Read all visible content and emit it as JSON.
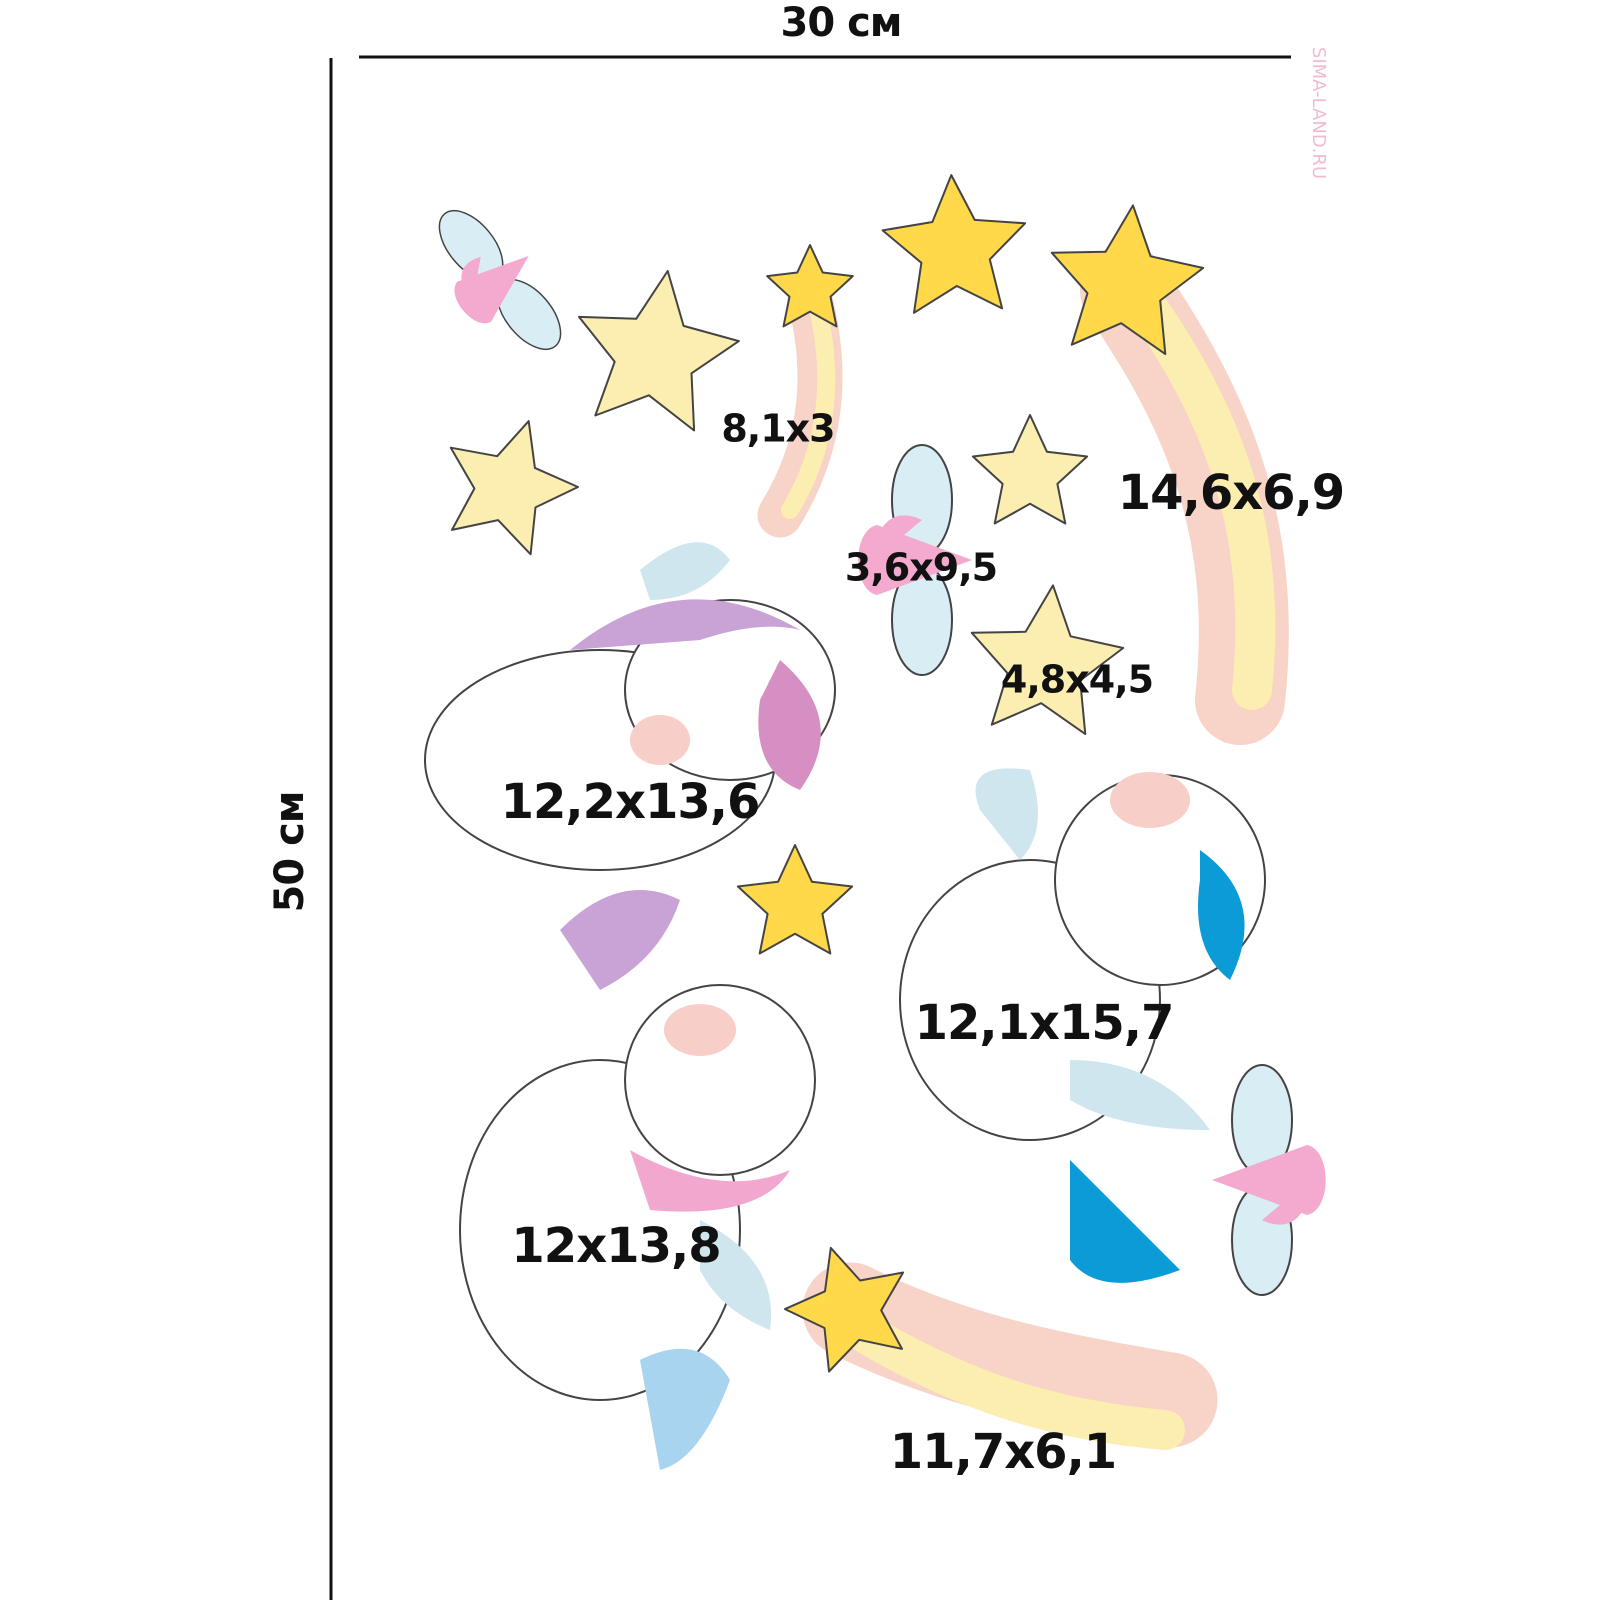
{
  "dimensions": {
    "width": "30 см",
    "height": "50 см"
  },
  "watermark": "SIMA-LAND.RU",
  "stickers": [
    {
      "size": "8,1x3"
    },
    {
      "size": "14,6x6,9"
    },
    {
      "size": "3,6x9,5"
    },
    {
      "size": "4,8x4,5"
    },
    {
      "size": "12,2x13,6"
    },
    {
      "size": "12,1x15,7"
    },
    {
      "size": "12x13,8"
    },
    {
      "size": "11,7x6,1"
    }
  ]
}
